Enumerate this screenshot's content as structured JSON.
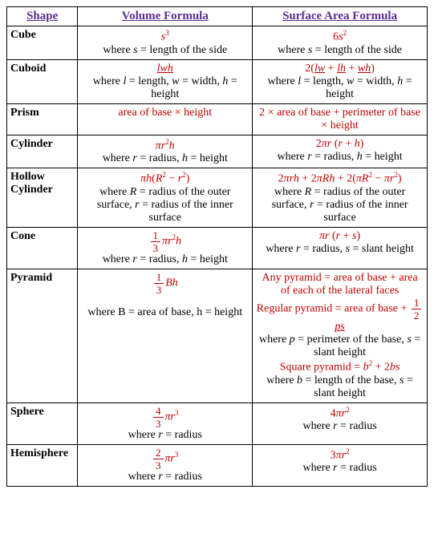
{
  "colors": {
    "header": "#5b2d90",
    "formula": "#c00000",
    "text": "#000000",
    "border": "#000000",
    "background": "#ffffff"
  },
  "fonts": {
    "family": "Times New Roman",
    "base_size": 14,
    "header_size": 15
  },
  "headers": {
    "shape": "Shape",
    "volume": "Volume Formula",
    "surface": "Surface Area Formula"
  },
  "rows": {
    "cube": {
      "name": "Cube",
      "vol_formula_html": "<span class='ital'>s</span><span class='sup'>3</span>",
      "vol_desc_html": "where <span class='ital'>s</span> = length of the side",
      "surf_formula_html": "6<span class='ital'>s</span><span class='sup'>2</span>",
      "surf_desc_html": "where <span class='ital'>s</span> = length of the side"
    },
    "cuboid": {
      "name": "Cuboid",
      "vol_formula_html": "<span class='ital' style='text-decoration:underline'>lwh</span>",
      "vol_desc_html": "where <span class='ital'>l</span> = length, <span class='ital'>w</span> = width, <span class='ital'>h</span> = height",
      "surf_formula_html": "2(<span class='ital' style='text-decoration:underline'>lw</span> + <span class='ital' style='text-decoration:underline'>lh</span> + <span class='ital' style='text-decoration:underline'>wh</span>)",
      "surf_desc_html": "where <span class='ital'>l</span> = length, <span class='ital'>w</span> = width, <span class='ital'>h</span> = height"
    },
    "prism": {
      "name": "Prism",
      "vol_formula_html": "area of base × height",
      "vol_desc_html": "",
      "surf_formula_html": "2 × area of base + perimeter of base × height",
      "surf_desc_html": ""
    },
    "cylinder": {
      "name": "Cylinder",
      "vol_formula_html": "<span class='ital'>πr</span><span class='sup'>2</span><span class='ital'>h</span>",
      "vol_desc_html": "where <span class='ital'>r</span> = radius, <span class='ital'>h</span> = height",
      "surf_formula_html": "2<span class='ital'>πr</span> (<span class='ital'>r</span> + <span class='ital'>h</span>)",
      "surf_desc_html": "where <span class='ital'>r</span> = radius, <span class='ital'>h</span> = height"
    },
    "hollow": {
      "name": "Hollow Cylinder",
      "vol_formula_html": "<span class='ital'>πh</span>(<span class='ital'>R</span><span class='sup'>2</span> − <span class='ital'>r</span><span class='sup'>2</span>)",
      "vol_desc_html": "where <span class='ital'>R</span> = radius of the outer surface, <span class='ital'>r</span> = radius of the inner surface",
      "surf_formula_html": "2<span class='ital'>πrh</span> + 2<span class='ital'>πRh</span> + 2(<span class='ital'>πR</span><span class='sup'>2</span> − <span class='ital'>πr</span><span class='sup'>2</span>)",
      "surf_desc_html": "where <span class='ital'>R</span> = radius of the outer surface, <span class='ital'>r</span> = radius of the inner surface"
    },
    "cone": {
      "name": "Cone",
      "vol_formula_html": "<span class='frac'><span class='num'>1</span><span class='den'>3</span></span><span class='ital'>πr</span><span class='sup'>2</span><span class='ital'>h</span>",
      "vol_desc_html": "where <span class='ital'>r</span> = radius, <span class='ital'>h</span> = height",
      "surf_formula_html": "<span class='ital'>πr</span> (<span class='ital'>r</span> + <span class='ital'>s</span>)",
      "surf_desc_html": "where <span class='ital'>r</span> = radius, <span class='ital'>s</span> = slant height"
    },
    "pyramid": {
      "name": "Pyramid",
      "vol_formula_html": "<span class='frac'><span class='num'>1</span><span class='den'>3</span></span><span class='ital'>Bh</span>",
      "vol_desc_html": "where B = area of base, h = height",
      "surf_line1": "Any pyramid = area of base + area of each of the lateral faces",
      "surf_line2_html": "Regular pyramid = area of base + <span class='frac'><span class='num'>1</span><span class='den'>2</span></span><span class='ital' style='text-decoration:underline'>ps</span>",
      "surf_desc1_html": "where <span class='ital'>p</span> = perimeter of the base, <span class='ital'>s</span> = slant height",
      "surf_line3_html": "Square pyramid = <span class='ital'>b</span><span class='sup'>2</span> + 2<span class='ital'>bs</span>",
      "surf_desc2_html": "where <span class='ital'>b</span> = length of the base, <span class='ital'>s</span> = slant height"
    },
    "sphere": {
      "name": "Sphere",
      "vol_formula_html": "<span class='frac'><span class='num'>4</span><span class='den'>3</span></span><span class='ital'>πr</span><span class='sup'>3</span>",
      "vol_desc_html": "where <span class='ital'>r</span> = radius",
      "surf_formula_html": "4<span class='ital'>πr</span><span class='sup'>2</span>",
      "surf_desc_html": "where <span class='ital'>r</span> = radius"
    },
    "hemisphere": {
      "name": "Hemisphere",
      "vol_formula_html": "<span class='frac'><span class='num'>2</span><span class='den'>3</span></span><span class='ital'>πr</span><span class='sup'>3</span>",
      "vol_desc_html": "where <span class='ital'>r</span> = radius",
      "surf_formula_html": "3<span class='ital'>πr</span><span class='sup'>2</span>",
      "surf_desc_html": "where <span class='ital'>r</span> = radius"
    }
  }
}
